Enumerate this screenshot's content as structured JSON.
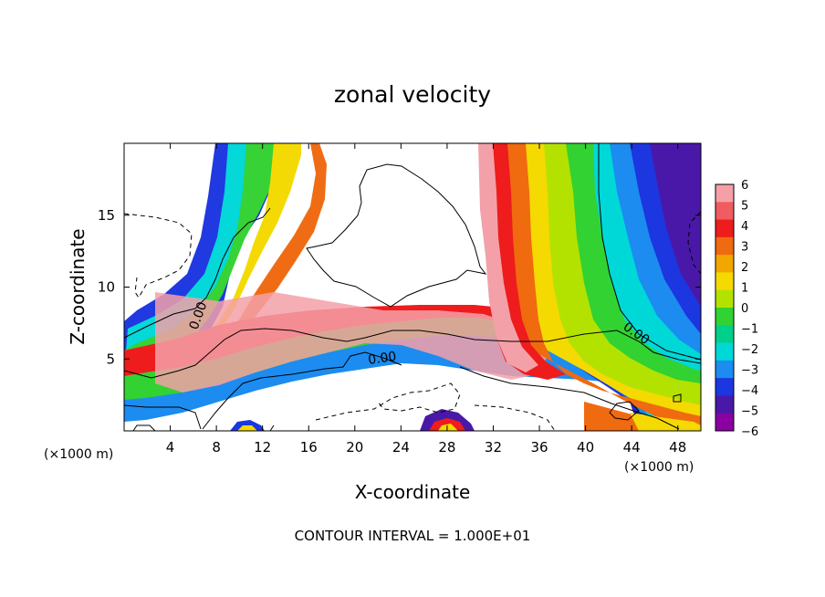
{
  "chart_data": {
    "type": "heatmap",
    "title": "zonal velocity",
    "xlabel": "X-coordinate",
    "ylabel": "Z-coordinate",
    "xlim": [
      0,
      50
    ],
    "ylim": [
      0,
      20
    ],
    "x_ticks": [
      4,
      8,
      12,
      16,
      20,
      24,
      28,
      32,
      36,
      40,
      44,
      48
    ],
    "y_ticks": [
      5,
      10,
      15
    ],
    "x_units": "(×1000 m)",
    "x_units_right": "(×1000 m)",
    "y_units": "(×1000 m)",
    "footer": "CONTOUR INTERVAL = 1.000E+01",
    "contour_labels": [
      "0.00",
      "0.00",
      "0.00"
    ],
    "colorbar": {
      "ticks": [
        "6",
        "5",
        "4",
        "3",
        "2",
        "1",
        "0",
        "−1",
        "−2",
        "−3",
        "−4",
        "−5",
        "−6"
      ],
      "colors": [
        "#f4a0a8",
        "#f05c60",
        "#ee1c1c",
        "#f06a10",
        "#f2a600",
        "#f4da00",
        "#b4e200",
        "#32d232",
        "#00d08a",
        "#00d8d8",
        "#1c8cf0",
        "#1c36e0",
        "#4a18a8",
        "#8a00a0"
      ]
    }
  }
}
